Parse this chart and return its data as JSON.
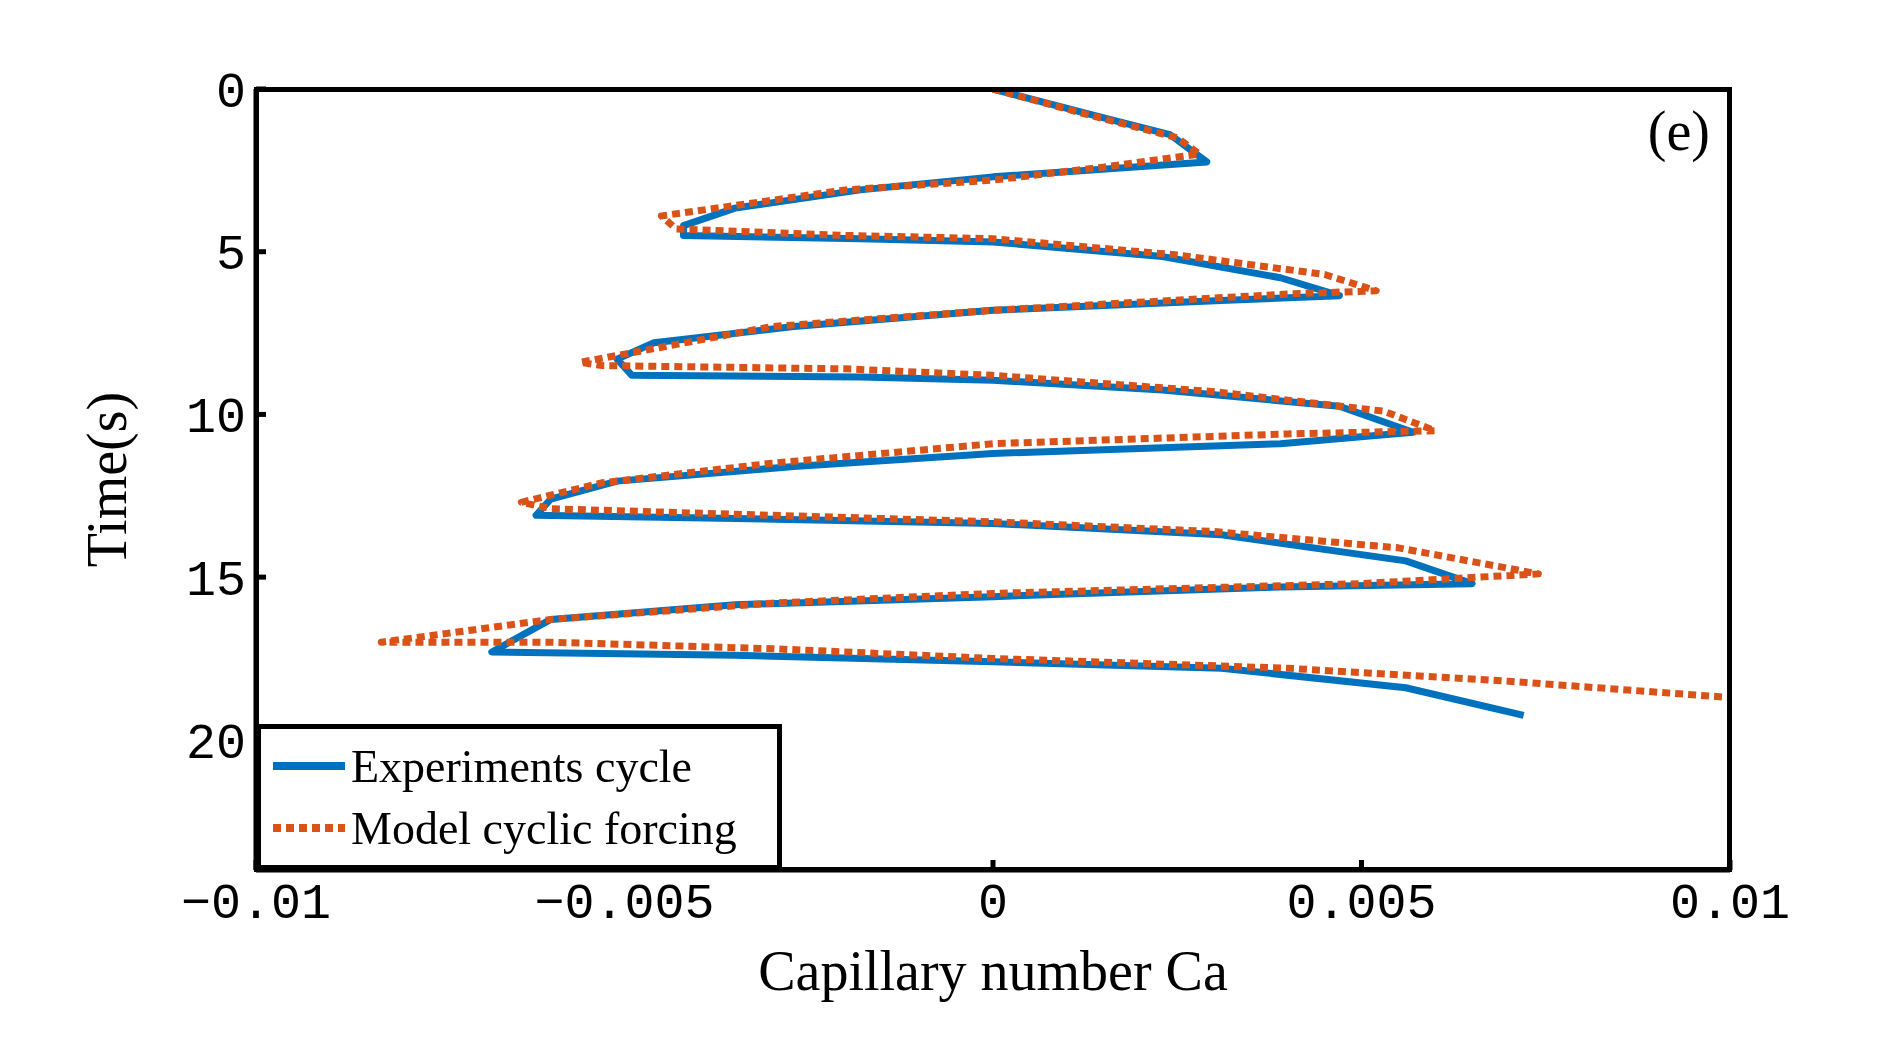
{
  "chart_data": {
    "type": "line",
    "xlabel": "Capillary number Ca",
    "ylabel": "Time(s)",
    "annotations": [
      "(e)"
    ],
    "xlim": [
      -0.01,
      0.01
    ],
    "xticks": [
      {
        "value": -0.01,
        "label": "−0.01"
      },
      {
        "value": -0.005,
        "label": "−0.005"
      },
      0,
      0.005,
      0.01
    ],
    "ylim": [
      24,
      0
    ],
    "yticks": [
      0,
      5,
      10,
      15,
      20
    ],
    "legend": "bottom left",
    "marker": "none",
    "series": [
      {
        "name": "Experiments cycle",
        "color": "#0072bd",
        "line_style": "solid",
        "x": [
          0,
          0.00145,
          0.0024,
          0.0029,
          0,
          -0.0018,
          -0.0035,
          -0.0042,
          -0.0042,
          -0.0018,
          0,
          0.0023,
          0.0039,
          0.0047,
          0.0031,
          0,
          -0.0027,
          -0.0046,
          -0.0051,
          -0.0049,
          -0.0018,
          0,
          0.0023,
          0.0047,
          0.0057,
          0.0039,
          0,
          -0.0027,
          -0.0051,
          -0.006,
          -0.0062,
          -0.0035,
          0,
          0.0031,
          0.0056,
          0.0065,
          0.0039,
          0,
          -0.0035,
          -0.006,
          -0.0068,
          -0.0035,
          0,
          0.0031,
          0.0056,
          0.0072
        ],
        "values": [
          0,
          0.86,
          1.4,
          2.24,
          2.7,
          3.1,
          3.66,
          4.2,
          4.5,
          4.6,
          4.7,
          5.15,
          5.8,
          6.35,
          6.5,
          6.8,
          7.3,
          7.8,
          8.3,
          8.8,
          8.85,
          8.95,
          9.25,
          9.75,
          10.55,
          10.9,
          11.2,
          11.6,
          12.05,
          12.6,
          13.1,
          13.2,
          13.35,
          13.7,
          14.5,
          15.2,
          15.3,
          15.6,
          15.85,
          16.3,
          17.3,
          17.4,
          17.6,
          17.8,
          18.4,
          19.25
        ]
      },
      {
        "name": "Model cyclic forcing",
        "color": "#d95319",
        "line_style": "dashed",
        "x": [
          0,
          0.0013,
          0.0025,
          0.0028,
          0.0015,
          0,
          -0.002,
          -0.0045,
          -0.0043,
          -0.002,
          0,
          0.0025,
          0.0045,
          0.0052,
          0.004,
          0,
          -0.003,
          -0.0056,
          -0.0053,
          -0.002,
          0,
          0.003,
          0.0053,
          0.006,
          0.004,
          0,
          -0.003,
          -0.0053,
          -0.0064,
          -0.006,
          -0.003,
          0,
          0.003,
          0.0055,
          0.0074,
          0.005,
          0,
          -0.003,
          -0.006,
          -0.0083,
          -0.006,
          -0.003,
          0,
          0.004,
          0.007,
          0.01
        ],
        "values": [
          0,
          0.8,
          1.5,
          2.0,
          2.4,
          2.8,
          3.1,
          3.9,
          4.3,
          4.5,
          4.6,
          5.1,
          5.7,
          6.2,
          6.3,
          6.8,
          7.3,
          8.4,
          8.5,
          8.6,
          8.8,
          9.3,
          9.9,
          10.5,
          10.6,
          10.9,
          11.5,
          12.1,
          12.7,
          12.9,
          13.1,
          13.3,
          13.6,
          14.1,
          14.9,
          15.2,
          15.5,
          15.8,
          16.3,
          17.0,
          17.0,
          17.2,
          17.5,
          17.8,
          18.2,
          18.7
        ]
      }
    ]
  }
}
